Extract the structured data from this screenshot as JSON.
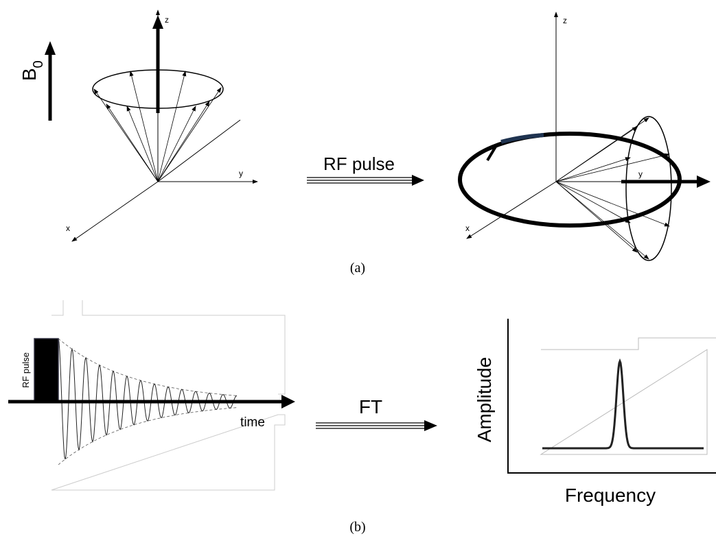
{
  "panel_a": {
    "label": "(a)",
    "left": {
      "field_symbol": "B",
      "field_subscript": "0",
      "axis_z": "z",
      "axis_y": "y",
      "axis_x": "x"
    },
    "arrow_label": "RF pulse",
    "right": {
      "axis_z": "z",
      "axis_y": "y",
      "axis_x": "x"
    }
  },
  "panel_b": {
    "label": "(b)",
    "left": {
      "pulse_label": "RF pulse",
      "axis_label": "time"
    },
    "arrow_label": "FT",
    "right": {
      "y_label": "Amplitude",
      "x_label": "Frequency"
    }
  }
}
